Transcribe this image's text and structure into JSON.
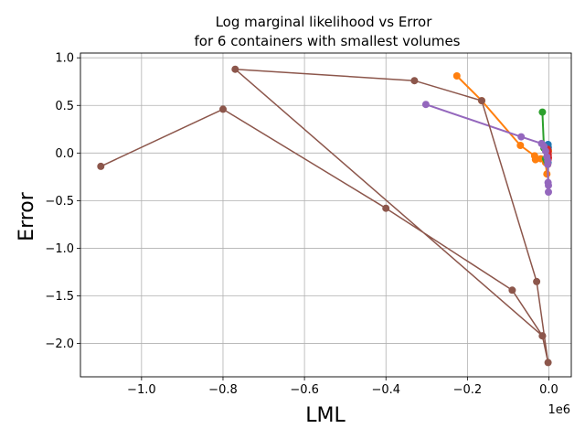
{
  "chart_data": {
    "type": "line",
    "title": [
      "Log marginal likelihood vs Error",
      "for 6 containers with smallest volumes"
    ],
    "xlabel": "LML",
    "ylabel": "Error",
    "x_offset_text": "1e6",
    "x_scale_factor": 1000000,
    "xlim": [
      -1150000,
      55000
    ],
    "ylim": [
      -2.35,
      1.05
    ],
    "xticks": [
      -1000000,
      -800000,
      -600000,
      -400000,
      -200000,
      0
    ],
    "xtick_labels": [
      "−1.0",
      "−0.8",
      "−0.6",
      "−0.4",
      "−0.2",
      "0.0"
    ],
    "yticks": [
      -2.0,
      -1.5,
      -1.0,
      -0.5,
      0.0,
      0.5,
      1.0
    ],
    "ytick_labels": [
      "−2.0",
      "−1.5",
      "−1.0",
      "−0.5",
      "0.0",
      "0.5",
      "1.0"
    ],
    "grid": true,
    "series": [
      {
        "color": "#1f77b4",
        "linewidth": 1.5,
        "points": [
          [
            -2000,
            0.09
          ],
          [
            -1500,
            0.06
          ],
          [
            -1000,
            0.03
          ],
          [
            -2500,
            -0.02
          ],
          [
            -3000,
            -0.06
          ],
          [
            -2000,
            -0.1
          ]
        ]
      },
      {
        "color": "#ff7f0e",
        "linewidth": 2,
        "points": [
          [
            -226000,
            0.81
          ],
          [
            -165000,
            0.55
          ],
          [
            -70000,
            0.08
          ],
          [
            -35000,
            -0.03
          ],
          [
            -33000,
            -0.07
          ],
          [
            -20000,
            -0.06
          ],
          [
            -8000,
            -0.1
          ],
          [
            -5000,
            -0.22
          ],
          [
            -3000,
            -0.12
          ],
          [
            -1000,
            0.02
          ]
        ]
      },
      {
        "color": "#2ca02c",
        "linewidth": 2,
        "points": [
          [
            -16000,
            0.43
          ],
          [
            -12000,
            0.05
          ],
          [
            -8000,
            -0.06
          ],
          [
            -5000,
            -0.09
          ],
          [
            -3000,
            -0.07
          ]
        ]
      },
      {
        "color": "#d62728",
        "linewidth": 2,
        "points": [
          [
            -3000,
            0.04
          ],
          [
            -2000,
            0.01
          ],
          [
            -1500,
            -0.02
          ],
          [
            -1000,
            -0.05
          ],
          [
            -2000,
            -0.07
          ]
        ]
      },
      {
        "color": "#9467bd",
        "linewidth": 2,
        "points": [
          [
            -302000,
            0.51
          ],
          [
            -68000,
            0.17
          ],
          [
            -18000,
            0.1
          ],
          [
            -12000,
            0.07
          ],
          [
            -8000,
            0.02
          ],
          [
            -5000,
            -0.04
          ],
          [
            -3000,
            -0.12
          ],
          [
            -2000,
            -0.31
          ],
          [
            -1000,
            -0.34
          ],
          [
            -1000,
            -0.41
          ],
          [
            -3000,
            -0.08
          ]
        ]
      },
      {
        "color": "#8c564b",
        "linewidth": 1.5,
        "points": [
          [
            -1100000,
            -0.14
          ],
          [
            -800000,
            0.46
          ],
          [
            -400000,
            -0.58
          ],
          [
            -90000,
            -1.44
          ],
          [
            -16000,
            -1.92
          ],
          [
            -2000,
            -2.2
          ],
          [
            -30000,
            -1.35
          ],
          [
            -165000,
            0.55
          ],
          [
            -330000,
            0.76
          ],
          [
            -770000,
            0.88
          ],
          [
            -16000,
            -1.92
          ]
        ]
      }
    ]
  }
}
